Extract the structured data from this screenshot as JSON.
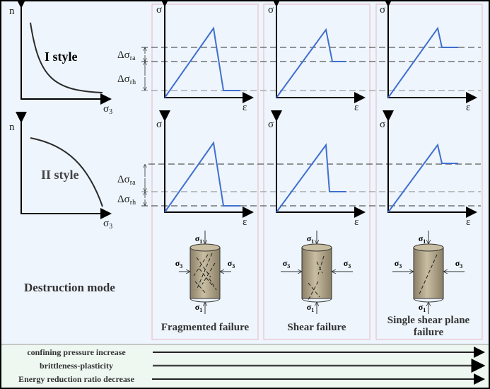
{
  "colors": {
    "background": "#eef5fc",
    "bottom_band": "#eef8f1",
    "panel_border": "#e8b8c4",
    "stress_curve": "#3f6fcf",
    "cylinder": "#b3a689"
  },
  "left_graphs": [
    {
      "y_axis": "n",
      "x_axis": {
        "base": "σ",
        "sub": "3"
      },
      "style_label": "I style"
    },
    {
      "y_axis": "n",
      "x_axis": {
        "base": "σ",
        "sub": "3"
      },
      "style_label": "II style"
    }
  ],
  "stress_axes": {
    "y": "σ",
    "x": "ε"
  },
  "delta_labels": {
    "ra": {
      "base": "Δσ",
      "sub": "ra"
    },
    "rh": {
      "base": "Δσ",
      "sub": "rh"
    }
  },
  "destruction_mode_label": "Destruction mode",
  "specimen": {
    "sigma1": {
      "base": "σ",
      "sub": "1"
    },
    "sigma3": {
      "base": "σ",
      "sub": "3"
    }
  },
  "failure_modes": [
    {
      "caption": [
        "Fragmented failure"
      ]
    },
    {
      "caption": [
        "Shear  failure"
      ]
    },
    {
      "caption": [
        "Single shear plane",
        "failure"
      ]
    }
  ],
  "trends": [
    "confining pressure increase",
    "brittleness-plasticity",
    "Energy reduction ratio decrease"
  ]
}
